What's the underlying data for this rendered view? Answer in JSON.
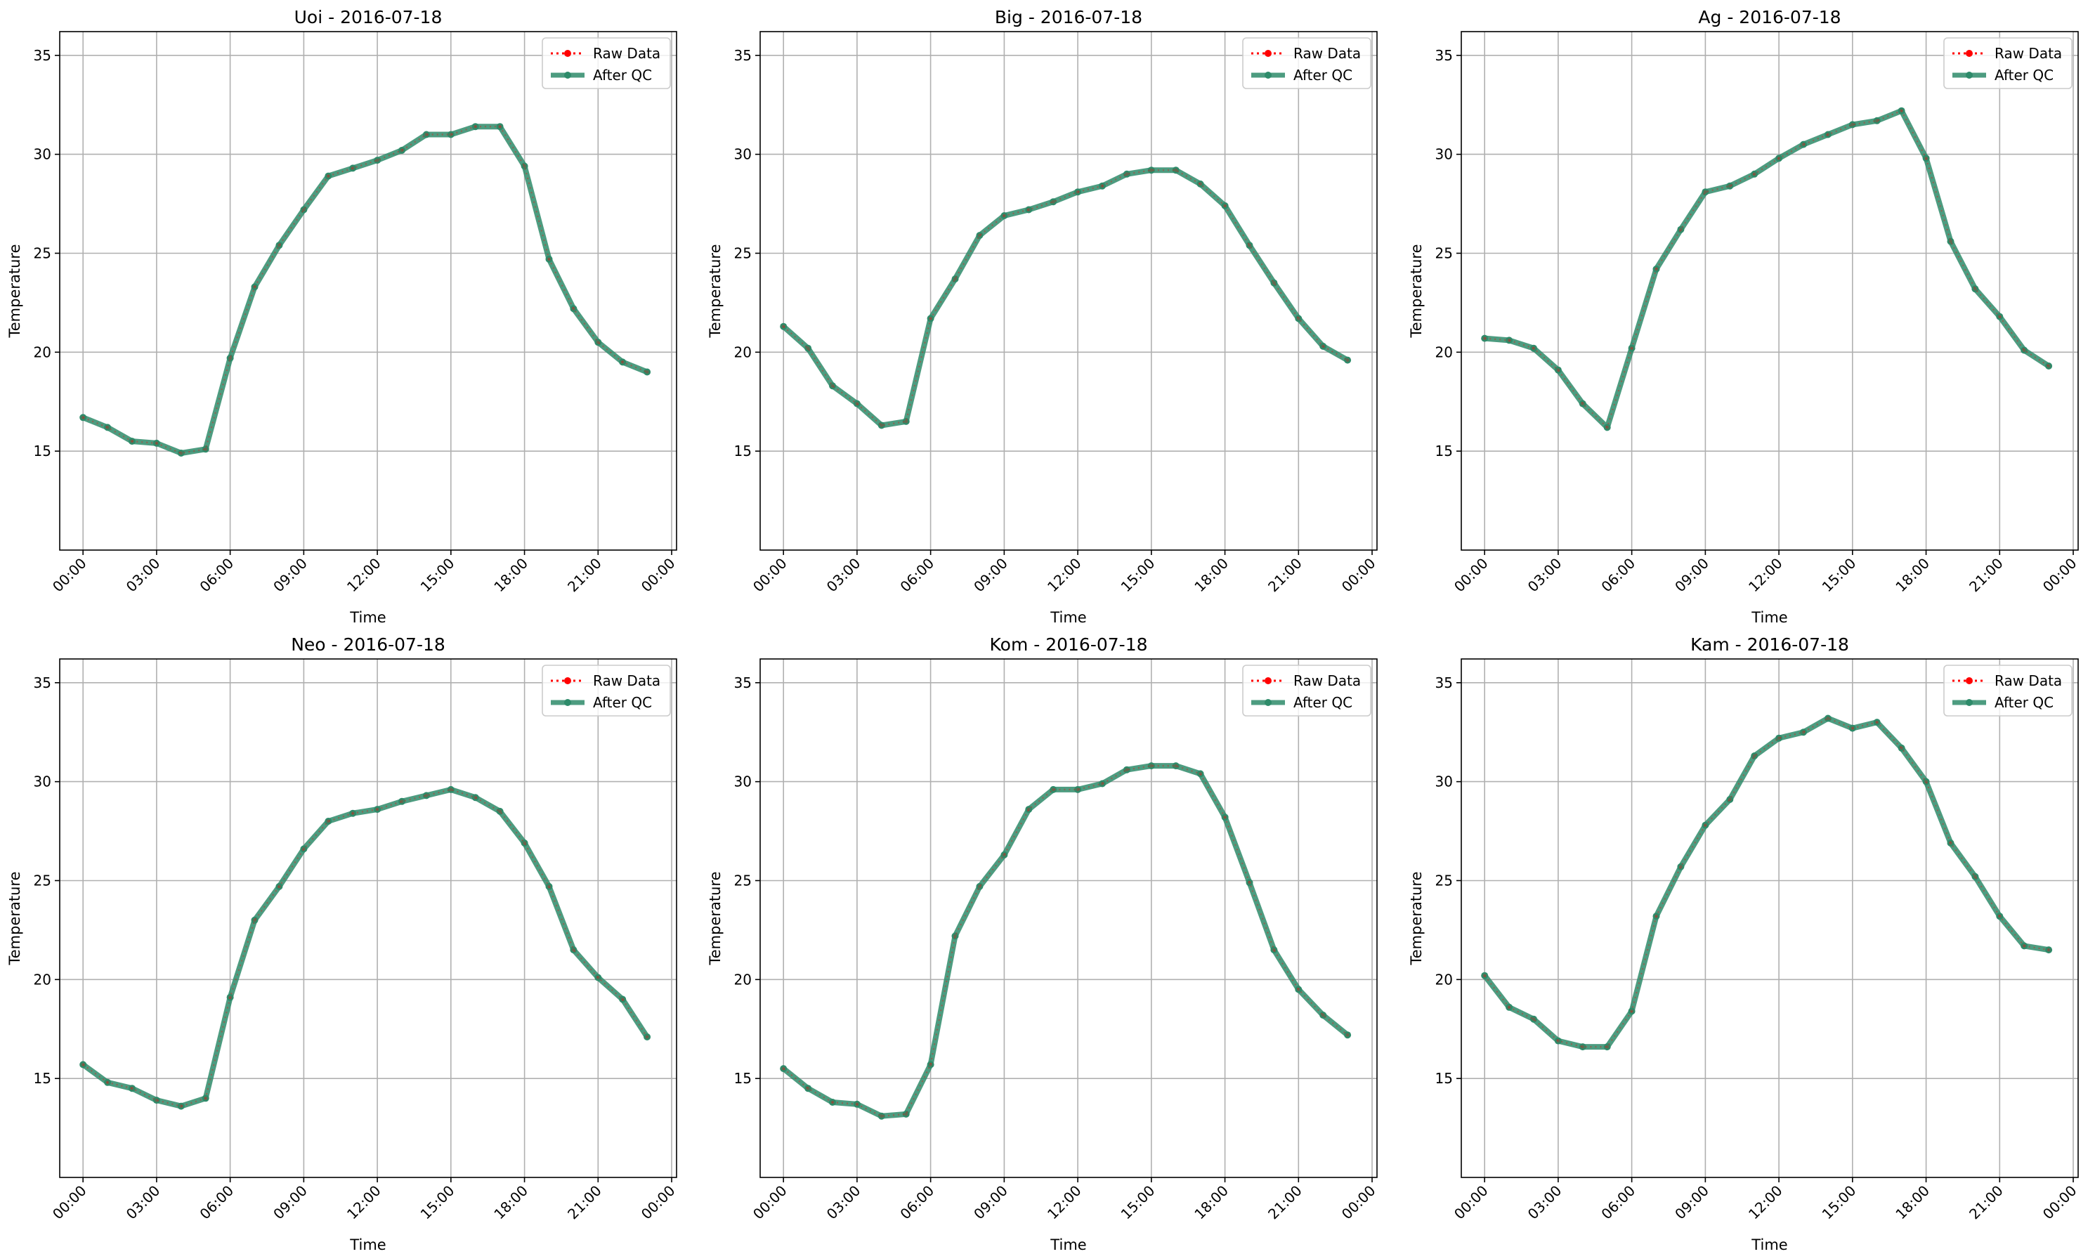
{
  "chart_data": [
    {
      "type": "line",
      "title": "Uoi - 2016-07-18",
      "xlabel": "Time",
      "ylabel": "Temperature",
      "ylim": [
        10.0,
        36.2
      ],
      "yticks": [
        15,
        20,
        25,
        30,
        35
      ],
      "xlim": [
        -0.95,
        24.2
      ],
      "xticks": [
        0,
        3,
        6,
        9,
        12,
        15,
        18,
        21,
        24
      ],
      "xtick_labels": [
        "00:00",
        "03:00",
        "06:00",
        "09:00",
        "12:00",
        "15:00",
        "18:00",
        "21:00",
        "00:00"
      ],
      "grid": true,
      "legend_position": "top-right",
      "x": [
        0,
        1,
        2,
        3,
        4,
        5,
        6,
        7,
        8,
        9,
        10,
        11,
        12,
        13,
        14,
        15,
        16,
        17,
        18,
        19,
        20,
        21,
        22,
        23
      ],
      "series": [
        {
          "name": "Raw Data",
          "values": [
            16.7,
            16.2,
            15.5,
            15.4,
            14.9,
            15.1,
            19.7,
            23.3,
            25.4,
            27.2,
            28.9,
            29.3,
            29.7,
            30.2,
            31.0,
            31.0,
            31.4,
            31.4,
            29.4,
            24.7,
            22.2,
            20.5,
            19.5,
            19.0
          ]
        },
        {
          "name": "After QC",
          "values": [
            16.7,
            16.2,
            15.5,
            15.4,
            14.9,
            15.1,
            19.7,
            23.3,
            25.4,
            27.2,
            28.9,
            29.3,
            29.7,
            30.2,
            31.0,
            31.0,
            31.4,
            31.4,
            29.4,
            24.7,
            22.2,
            20.5,
            19.5,
            19.0
          ]
        }
      ]
    },
    {
      "type": "line",
      "title": "Big - 2016-07-18",
      "xlabel": "Time",
      "ylabel": "Temperature",
      "ylim": [
        10.0,
        36.2
      ],
      "yticks": [
        15,
        20,
        25,
        30,
        35
      ],
      "xlim": [
        -0.95,
        24.2
      ],
      "xticks": [
        0,
        3,
        6,
        9,
        12,
        15,
        18,
        21,
        24
      ],
      "xtick_labels": [
        "00:00",
        "03:00",
        "06:00",
        "09:00",
        "12:00",
        "15:00",
        "18:00",
        "21:00",
        "00:00"
      ],
      "grid": true,
      "legend_position": "top-right",
      "x": [
        0,
        1,
        2,
        3,
        4,
        5,
        6,
        7,
        8,
        9,
        10,
        11,
        12,
        13,
        14,
        15,
        16,
        17,
        18,
        19,
        20,
        21,
        22,
        23
      ],
      "series": [
        {
          "name": "Raw Data",
          "values": [
            21.3,
            20.2,
            18.3,
            17.4,
            16.3,
            16.5,
            21.7,
            23.7,
            25.9,
            26.9,
            27.2,
            27.6,
            28.1,
            28.4,
            29.0,
            29.2,
            29.2,
            28.5,
            27.4,
            25.4,
            23.5,
            21.7,
            20.3,
            19.6
          ]
        },
        {
          "name": "After QC",
          "values": [
            21.3,
            20.2,
            18.3,
            17.4,
            16.3,
            16.5,
            21.7,
            23.7,
            25.9,
            26.9,
            27.2,
            27.6,
            28.1,
            28.4,
            29.0,
            29.2,
            29.2,
            28.5,
            27.4,
            25.4,
            23.5,
            21.7,
            20.3,
            19.6
          ]
        }
      ]
    },
    {
      "type": "line",
      "title": "Ag - 2016-07-18",
      "xlabel": "Time",
      "ylabel": "Temperature",
      "ylim": [
        10.0,
        36.2
      ],
      "yticks": [
        15,
        20,
        25,
        30,
        35
      ],
      "xlim": [
        -0.95,
        24.2
      ],
      "xticks": [
        0,
        3,
        6,
        9,
        12,
        15,
        18,
        21,
        24
      ],
      "xtick_labels": [
        "00:00",
        "03:00",
        "06:00",
        "09:00",
        "12:00",
        "15:00",
        "18:00",
        "21:00",
        "00:00"
      ],
      "grid": true,
      "legend_position": "top-right",
      "x": [
        0,
        1,
        2,
        3,
        4,
        5,
        6,
        7,
        8,
        9,
        10,
        11,
        12,
        13,
        14,
        15,
        16,
        17,
        18,
        19,
        20,
        21,
        22,
        23
      ],
      "series": [
        {
          "name": "Raw Data",
          "values": [
            20.7,
            20.6,
            20.2,
            19.1,
            17.4,
            16.2,
            20.2,
            24.2,
            26.2,
            28.1,
            28.4,
            29.0,
            29.8,
            30.5,
            31.0,
            31.5,
            31.7,
            32.2,
            29.8,
            25.6,
            23.2,
            21.8,
            20.1,
            19.3
          ]
        },
        {
          "name": "After QC",
          "values": [
            20.7,
            20.6,
            20.2,
            19.1,
            17.4,
            16.2,
            20.2,
            24.2,
            26.2,
            28.1,
            28.4,
            29.0,
            29.8,
            30.5,
            31.0,
            31.5,
            31.7,
            32.2,
            29.8,
            25.6,
            23.2,
            21.8,
            20.1,
            19.3
          ]
        }
      ]
    },
    {
      "type": "line",
      "title": "Neo - 2016-07-18",
      "xlabel": "Time",
      "ylabel": "Temperature",
      "ylim": [
        10.0,
        36.2
      ],
      "yticks": [
        15,
        20,
        25,
        30,
        35
      ],
      "xlim": [
        -0.95,
        24.2
      ],
      "xticks": [
        0,
        3,
        6,
        9,
        12,
        15,
        18,
        21,
        24
      ],
      "xtick_labels": [
        "00:00",
        "03:00",
        "06:00",
        "09:00",
        "12:00",
        "15:00",
        "18:00",
        "21:00",
        "00:00"
      ],
      "grid": true,
      "legend_position": "top-right",
      "x": [
        0,
        1,
        2,
        3,
        4,
        5,
        6,
        7,
        8,
        9,
        10,
        11,
        12,
        13,
        14,
        15,
        16,
        17,
        18,
        19,
        20,
        21,
        22,
        23
      ],
      "series": [
        {
          "name": "Raw Data",
          "values": [
            15.7,
            14.8,
            14.5,
            13.9,
            13.6,
            14.0,
            19.1,
            23.0,
            24.7,
            26.6,
            28.0,
            28.4,
            28.6,
            29.0,
            29.3,
            29.6,
            29.2,
            28.5,
            26.9,
            24.7,
            21.5,
            20.1,
            19.0,
            17.1
          ]
        },
        {
          "name": "After QC",
          "values": [
            15.7,
            14.8,
            14.5,
            13.9,
            13.6,
            14.0,
            19.1,
            23.0,
            24.7,
            26.6,
            28.0,
            28.4,
            28.6,
            29.0,
            29.3,
            29.6,
            29.2,
            28.5,
            26.9,
            24.7,
            21.5,
            20.1,
            19.0,
            17.1
          ]
        }
      ]
    },
    {
      "type": "line",
      "title": "Kom - 2016-07-18",
      "xlabel": "Time",
      "ylabel": "Temperature",
      "ylim": [
        10.0,
        36.2
      ],
      "yticks": [
        15,
        20,
        25,
        30,
        35
      ],
      "xlim": [
        -0.95,
        24.2
      ],
      "xticks": [
        0,
        3,
        6,
        9,
        12,
        15,
        18,
        21,
        24
      ],
      "xtick_labels": [
        "00:00",
        "03:00",
        "06:00",
        "09:00",
        "12:00",
        "15:00",
        "18:00",
        "21:00",
        "00:00"
      ],
      "grid": true,
      "legend_position": "top-right",
      "x": [
        0,
        1,
        2,
        3,
        4,
        5,
        6,
        7,
        8,
        9,
        10,
        11,
        12,
        13,
        14,
        15,
        16,
        17,
        18,
        19,
        20,
        21,
        22,
        23
      ],
      "series": [
        {
          "name": "Raw Data",
          "values": [
            15.5,
            14.5,
            13.8,
            13.7,
            13.1,
            13.2,
            15.7,
            22.2,
            24.7,
            26.3,
            28.6,
            29.6,
            29.6,
            29.9,
            30.6,
            30.8,
            30.8,
            30.4,
            28.2,
            24.9,
            21.5,
            19.5,
            18.2,
            17.2
          ]
        },
        {
          "name": "After QC",
          "values": [
            15.5,
            14.5,
            13.8,
            13.7,
            13.1,
            13.2,
            15.7,
            22.2,
            24.7,
            26.3,
            28.6,
            29.6,
            29.6,
            29.9,
            30.6,
            30.8,
            30.8,
            30.4,
            28.2,
            24.9,
            21.5,
            19.5,
            18.2,
            17.2
          ]
        }
      ]
    },
    {
      "type": "line",
      "title": "Kam - 2016-07-18",
      "xlabel": "Time",
      "ylabel": "Temperature",
      "ylim": [
        10.0,
        36.2
      ],
      "yticks": [
        15,
        20,
        25,
        30,
        35
      ],
      "xlim": [
        -0.95,
        24.2
      ],
      "xticks": [
        0,
        3,
        6,
        9,
        12,
        15,
        18,
        21,
        24
      ],
      "xtick_labels": [
        "00:00",
        "03:00",
        "06:00",
        "09:00",
        "12:00",
        "15:00",
        "18:00",
        "21:00",
        "00:00"
      ],
      "grid": true,
      "legend_position": "top-right",
      "x": [
        0,
        1,
        2,
        3,
        4,
        5,
        6,
        7,
        8,
        9,
        10,
        11,
        12,
        13,
        14,
        15,
        16,
        17,
        18,
        19,
        20,
        21,
        22,
        23
      ],
      "series": [
        {
          "name": "Raw Data",
          "values": [
            20.2,
            18.6,
            18.0,
            16.9,
            16.6,
            16.6,
            18.4,
            23.2,
            25.7,
            27.8,
            29.1,
            31.3,
            32.2,
            32.5,
            33.2,
            32.7,
            33.0,
            31.7,
            30.0,
            26.9,
            25.2,
            23.2,
            21.7,
            21.5
          ]
        },
        {
          "name": "After QC",
          "values": [
            20.2,
            18.6,
            18.0,
            16.9,
            16.6,
            16.6,
            18.4,
            23.2,
            25.7,
            27.8,
            29.1,
            31.3,
            32.2,
            32.5,
            33.2,
            32.7,
            33.0,
            31.7,
            30.0,
            26.9,
            25.2,
            23.2,
            21.7,
            21.5
          ]
        }
      ]
    }
  ],
  "style": {
    "raw_color": "#ff0000",
    "qc_color": "#2e8b6a",
    "grid_color": "#b0b0b0",
    "axis_color": "#000000"
  }
}
